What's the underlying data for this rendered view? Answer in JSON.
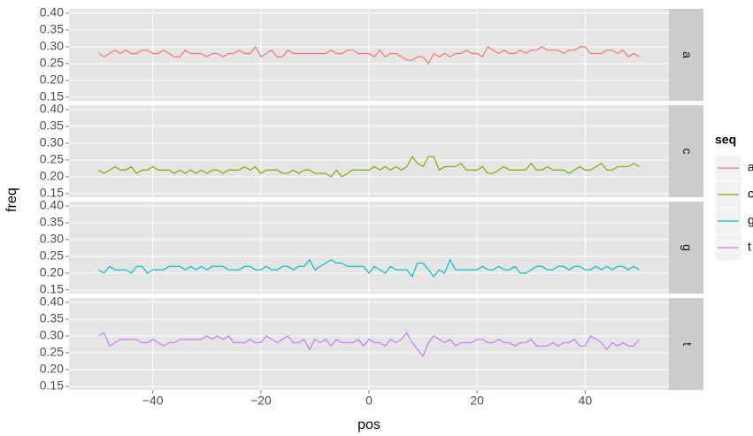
{
  "chart_data": {
    "type": "line",
    "xlabel": "pos",
    "ylabel": "freq",
    "legend_title": "seq",
    "legend": "right",
    "grid": true,
    "facet": "rows",
    "x": [
      -50,
      -49,
      -48,
      -47,
      -46,
      -45,
      -44,
      -43,
      -42,
      -41,
      -40,
      -39,
      -38,
      -37,
      -36,
      -35,
      -34,
      -33,
      -32,
      -31,
      -30,
      -29,
      -28,
      -27,
      -26,
      -25,
      -24,
      -23,
      -22,
      -21,
      -20,
      -19,
      -18,
      -17,
      -16,
      -15,
      -14,
      -13,
      -12,
      -11,
      -10,
      -9,
      -8,
      -7,
      -6,
      -5,
      -4,
      -3,
      -2,
      -1,
      0,
      1,
      2,
      3,
      4,
      5,
      6,
      7,
      8,
      9,
      10,
      11,
      12,
      13,
      14,
      15,
      16,
      17,
      18,
      19,
      20,
      21,
      22,
      23,
      24,
      25,
      26,
      27,
      28,
      29,
      30,
      31,
      32,
      33,
      34,
      35,
      36,
      37,
      38,
      39,
      40,
      41,
      42,
      43,
      44,
      45,
      46,
      47,
      48,
      49,
      50
    ],
    "xlim": [
      -55.5,
      55.5
    ],
    "xticks": [
      {
        "value": -40,
        "label": "−40"
      },
      {
        "value": -20,
        "label": "−20"
      },
      0,
      20,
      40
    ],
    "ylim": [
      0.139,
      0.413
    ],
    "yticks": [
      {
        "value": 0.15,
        "label": "0.15"
      },
      {
        "value": 0.2,
        "label": "0.20"
      },
      {
        "value": 0.25,
        "label": "0.25"
      },
      {
        "value": 0.3,
        "label": "0.30"
      },
      {
        "value": 0.35,
        "label": "0.35"
      },
      {
        "value": 0.4,
        "label": "0.40"
      }
    ],
    "series": [
      {
        "name": "a",
        "color": "#F8766D",
        "values": [
          0.28,
          0.27,
          0.28,
          0.29,
          0.28,
          0.29,
          0.28,
          0.28,
          0.29,
          0.29,
          0.28,
          0.28,
          0.29,
          0.28,
          0.27,
          0.27,
          0.29,
          0.28,
          0.28,
          0.28,
          0.27,
          0.28,
          0.28,
          0.27,
          0.28,
          0.28,
          0.29,
          0.28,
          0.28,
          0.3,
          0.27,
          0.28,
          0.29,
          0.27,
          0.27,
          0.29,
          0.28,
          0.28,
          0.28,
          0.28,
          0.28,
          0.28,
          0.28,
          0.29,
          0.28,
          0.28,
          0.29,
          0.29,
          0.28,
          0.28,
          0.28,
          0.27,
          0.29,
          0.27,
          0.28,
          0.28,
          0.27,
          0.26,
          0.26,
          0.27,
          0.27,
          0.25,
          0.28,
          0.27,
          0.28,
          0.27,
          0.28,
          0.28,
          0.29,
          0.28,
          0.28,
          0.27,
          0.3,
          0.29,
          0.28,
          0.29,
          0.28,
          0.28,
          0.29,
          0.28,
          0.29,
          0.29,
          0.3,
          0.29,
          0.29,
          0.29,
          0.28,
          0.29,
          0.29,
          0.3,
          0.3,
          0.28,
          0.28,
          0.28,
          0.29,
          0.29,
          0.28,
          0.29,
          0.27,
          0.28,
          0.27
        ]
      },
      {
        "name": "c",
        "color": "#7CAE00",
        "values": [
          0.22,
          0.21,
          0.22,
          0.23,
          0.22,
          0.22,
          0.23,
          0.21,
          0.22,
          0.22,
          0.23,
          0.22,
          0.22,
          0.22,
          0.21,
          0.22,
          0.21,
          0.22,
          0.21,
          0.22,
          0.21,
          0.22,
          0.22,
          0.21,
          0.22,
          0.22,
          0.22,
          0.23,
          0.22,
          0.23,
          0.21,
          0.22,
          0.22,
          0.22,
          0.21,
          0.21,
          0.22,
          0.21,
          0.22,
          0.22,
          0.21,
          0.21,
          0.21,
          0.2,
          0.22,
          0.2,
          0.21,
          0.22,
          0.22,
          0.22,
          0.22,
          0.23,
          0.22,
          0.23,
          0.22,
          0.23,
          0.22,
          0.23,
          0.26,
          0.24,
          0.23,
          0.26,
          0.26,
          0.22,
          0.23,
          0.23,
          0.23,
          0.24,
          0.22,
          0.22,
          0.22,
          0.23,
          0.21,
          0.21,
          0.22,
          0.23,
          0.22,
          0.22,
          0.22,
          0.22,
          0.24,
          0.22,
          0.22,
          0.23,
          0.22,
          0.22,
          0.22,
          0.21,
          0.22,
          0.23,
          0.22,
          0.22,
          0.23,
          0.24,
          0.22,
          0.22,
          0.23,
          0.23,
          0.23,
          0.24,
          0.23
        ]
      },
      {
        "name": "g",
        "color": "#00BFC4",
        "values": [
          0.21,
          0.2,
          0.22,
          0.21,
          0.21,
          0.21,
          0.2,
          0.22,
          0.22,
          0.2,
          0.21,
          0.21,
          0.21,
          0.22,
          0.22,
          0.22,
          0.21,
          0.22,
          0.21,
          0.22,
          0.21,
          0.22,
          0.22,
          0.22,
          0.21,
          0.21,
          0.21,
          0.22,
          0.22,
          0.21,
          0.21,
          0.22,
          0.21,
          0.21,
          0.22,
          0.22,
          0.21,
          0.22,
          0.22,
          0.24,
          0.21,
          0.22,
          0.23,
          0.24,
          0.23,
          0.23,
          0.22,
          0.22,
          0.22,
          0.22,
          0.2,
          0.22,
          0.21,
          0.2,
          0.22,
          0.21,
          0.21,
          0.21,
          0.19,
          0.23,
          0.23,
          0.21,
          0.19,
          0.21,
          0.2,
          0.24,
          0.21,
          0.21,
          0.21,
          0.21,
          0.21,
          0.22,
          0.21,
          0.21,
          0.22,
          0.21,
          0.21,
          0.22,
          0.2,
          0.2,
          0.21,
          0.22,
          0.22,
          0.21,
          0.21,
          0.22,
          0.22,
          0.21,
          0.22,
          0.22,
          0.21,
          0.21,
          0.22,
          0.21,
          0.22,
          0.21,
          0.22,
          0.22,
          0.21,
          0.22,
          0.21
        ]
      },
      {
        "name": "t",
        "color": "#C77CFF",
        "values": [
          0.3,
          0.31,
          0.27,
          0.28,
          0.29,
          0.29,
          0.29,
          0.29,
          0.28,
          0.28,
          0.29,
          0.28,
          0.27,
          0.28,
          0.28,
          0.29,
          0.29,
          0.29,
          0.29,
          0.29,
          0.3,
          0.29,
          0.3,
          0.29,
          0.3,
          0.28,
          0.28,
          0.28,
          0.29,
          0.28,
          0.28,
          0.3,
          0.29,
          0.28,
          0.29,
          0.3,
          0.28,
          0.28,
          0.29,
          0.26,
          0.29,
          0.28,
          0.29,
          0.27,
          0.29,
          0.28,
          0.28,
          0.28,
          0.29,
          0.27,
          0.29,
          0.28,
          0.28,
          0.27,
          0.29,
          0.28,
          0.29,
          0.31,
          0.28,
          0.26,
          0.24,
          0.28,
          0.3,
          0.29,
          0.28,
          0.29,
          0.27,
          0.28,
          0.28,
          0.28,
          0.29,
          0.29,
          0.28,
          0.28,
          0.29,
          0.28,
          0.28,
          0.27,
          0.28,
          0.28,
          0.29,
          0.27,
          0.27,
          0.27,
          0.28,
          0.27,
          0.28,
          0.28,
          0.29,
          0.27,
          0.27,
          0.3,
          0.29,
          0.28,
          0.26,
          0.28,
          0.27,
          0.28,
          0.27,
          0.27,
          0.29
        ]
      }
    ]
  }
}
